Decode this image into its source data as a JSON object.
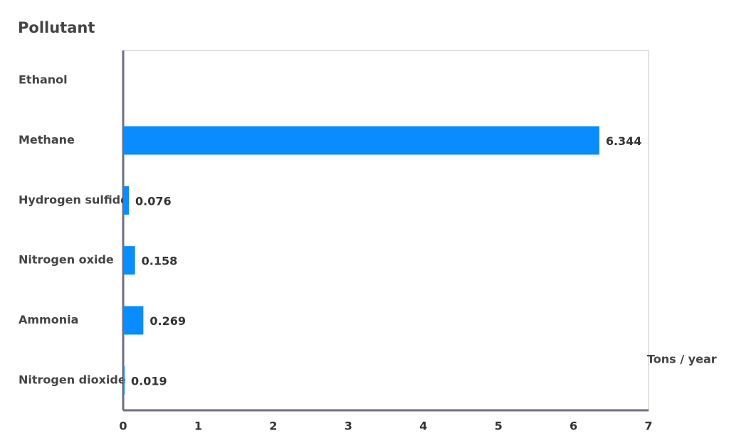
{
  "chart_data": {
    "type": "hbar",
    "title": "Pollutant",
    "x_label": "Tons / year",
    "categories": [
      "Ethanol",
      "Methane",
      "Hydrogen sulfide",
      "Nitrogen oxide",
      "Ammonia",
      "Nitrogen dioxide"
    ],
    "values": [
      null,
      6.344,
      0.076,
      0.158,
      0.269,
      0.019
    ],
    "color": "#088cfe",
    "xlim": [
      0,
      7
    ],
    "xticks": [
      0,
      1,
      2,
      3,
      4,
      5,
      6,
      7
    ],
    "grid": false
  }
}
